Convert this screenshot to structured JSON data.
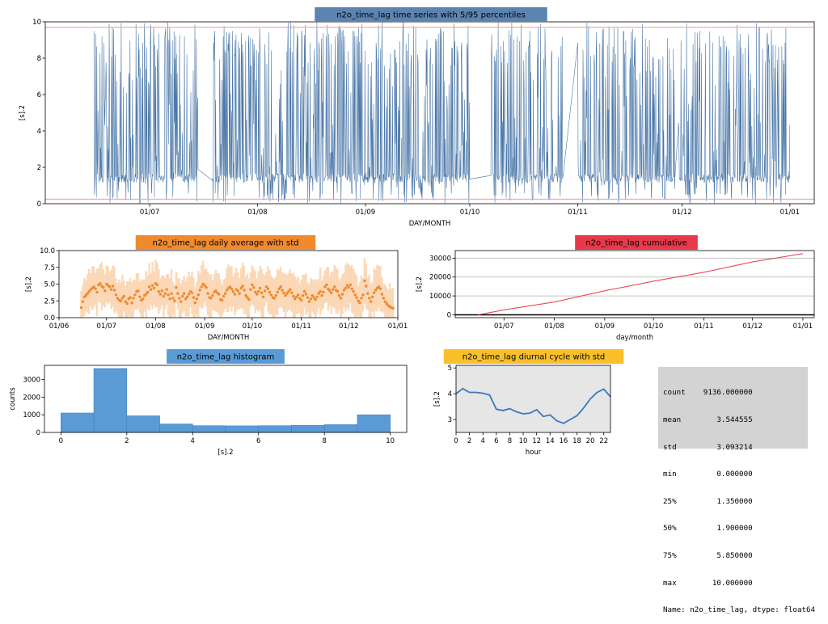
{
  "colors": {
    "ts_line": "#4a77a8",
    "percentile_line": "#ee9a9a",
    "ts_title_bg": "#5b84b1",
    "daily_title_bg": "#f08a2e",
    "daily_points": "#f08a2e",
    "daily_band": "#fbd3ad",
    "cum_title_bg": "#e8394a",
    "cum_line": "#e8394a",
    "hist_title_bg": "#5b9bd5",
    "hist_bar": "#5b9bd5",
    "diurnal_title_bg": "#f9c02b",
    "diurnal_line": "#3a7abf",
    "diurnal_bg": "#e6e6e6",
    "stats_bg": "#d3d3d3"
  },
  "chart_data": [
    {
      "id": "timeseries",
      "type": "line",
      "title": "n2o_time_lag time series with 5/95 percentiles",
      "xlabel": "DAY/MONTH",
      "ylabel": "[s].2",
      "ylim": [
        0,
        10
      ],
      "yticks": [
        "0",
        "2",
        "4",
        "6",
        "8",
        "10"
      ],
      "xticks": [
        "01/07",
        "01/08",
        "01/09",
        "01/10",
        "01/11",
        "01/12",
        "01/01"
      ],
      "xrange": [
        "2023-06-01",
        "2024-01-08"
      ],
      "data_start": "2023-06-15",
      "data_end": "2024-01-01",
      "percentile_5": 0.25,
      "percentile_95": 9.7,
      "gaps": [
        [
          "2023-07-15",
          "2023-07-19"
        ],
        [
          "2023-10-01",
          "2023-10-07"
        ],
        [
          "2023-10-28",
          "2023-11-01"
        ],
        [
          "2023-11-29",
          "2023-11-30"
        ]
      ],
      "typical_level": 1.4
    },
    {
      "id": "daily",
      "type": "scatter",
      "title": "n2o_time_lag daily average with std",
      "xlabel": "DAY/MONTH",
      "ylabel": "[s].2",
      "ylim": [
        0,
        10
      ],
      "yticks": [
        "0.0",
        "2.5",
        "5.0",
        "7.5",
        "10.0"
      ],
      "xticks": [
        "01/06",
        "01/07",
        "01/08",
        "01/09",
        "01/10",
        "01/11",
        "01/12",
        "01/01"
      ],
      "xrange": [
        "2023-06-01",
        "2024-01-01"
      ],
      "x_start": "2023-06-15",
      "values": [
        1.5,
        2.4,
        3.1,
        3.3,
        3.6,
        3.9,
        4.2,
        4.4,
        4.6,
        4.3,
        3.8,
        4.9,
        5.1,
        4.7,
        4.5,
        4.0,
        5.0,
        4.8,
        4.6,
        4.2,
        4.7,
        4.1,
        3.4,
        2.9,
        2.6,
        2.5,
        2.9,
        3.2,
        2.4,
        2.1,
        2.8,
        3.0,
        2.2,
        2.9,
        3.4,
        3.9,
        4.0,
        3.1,
        2.6,
        2.8,
        3.3,
        3.5,
        3.8,
        4.6,
        4.2,
        4.8,
        4.4,
        5.1,
        4.9,
        3.9,
        3.5,
        4.0,
        3.2,
        3.6,
        4.2,
        3.4,
        2.8,
        3.6,
        2.9,
        2.5,
        4.5,
        3.6,
        2.9,
        2.4,
        3.2,
        3.6,
        2.8,
        3.1,
        3.5,
        3.9,
        3.7,
        3.0,
        2.2,
        2.8,
        3.4,
        4.1,
        4.6,
        5.0,
        4.8,
        4.5,
        3.6,
        3.0,
        2.9,
        3.3,
        3.8,
        4.0,
        3.7,
        3.5,
        2.7,
        2.6,
        3.2,
        3.6,
        4.1,
        4.4,
        4.6,
        4.3,
        3.9,
        3.5,
        4.2,
        4.0,
        3.6,
        4.4,
        4.7,
        4.1,
        3.3,
        3.0,
        2.7,
        4.2,
        4.9,
        4.5,
        3.8,
        3.5,
        3.9,
        4.4,
        3.7,
        3.1,
        4.0,
        4.6,
        4.3,
        3.8,
        3.4,
        3.0,
        2.9,
        3.3,
        3.8,
        4.3,
        4.6,
        4.1,
        3.7,
        3.3,
        3.6,
        3.9,
        4.2,
        3.7,
        3.2,
        2.8,
        3.1,
        3.4,
        2.9,
        2.6,
        3.3,
        3.9,
        3.5,
        3.0,
        2.4,
        2.8,
        3.3,
        3.0,
        2.7,
        3.1,
        3.6,
        3.9,
        3.3,
        3.8,
        4.6,
        4.9,
        4.3,
        4.0,
        3.7,
        4.2,
        4.6,
        4.1,
        3.9,
        3.3,
        2.9,
        3.5,
        4.1,
        4.4,
        4.8,
        4.5,
        4.9,
        4.3,
        3.9,
        3.4,
        3.0,
        2.5,
        2.2,
        2.9,
        3.4,
        5.5,
        4.7,
        3.6,
        2.9,
        2.4,
        3.1,
        3.7,
        4.1,
        4.4,
        4.6,
        4.3,
        3.5,
        2.9,
        2.4,
        2.1,
        1.8,
        1.6,
        1.5,
        1.4
      ],
      "std": 2.9
    },
    {
      "id": "cumulative",
      "type": "line",
      "title": "n2o_time_lag cumulative",
      "xlabel": "day/month",
      "ylabel": "[s].2",
      "ylim": [
        -1500,
        34000
      ],
      "yticks": [
        "0",
        "10000",
        "20000",
        "30000"
      ],
      "xticks": [
        "01/07",
        "01/08",
        "01/09",
        "01/10",
        "01/11",
        "01/12",
        "01/01"
      ],
      "xrange": [
        "2023-06-01",
        "2024-01-08"
      ],
      "x": [
        "2023-06-15",
        "2023-07-01",
        "2023-08-01",
        "2023-09-01",
        "2023-10-01",
        "2023-11-01",
        "2023-12-01",
        "2024-01-01"
      ],
      "y": [
        0,
        2600,
        6800,
        12700,
        17800,
        22500,
        28000,
        32400
      ]
    },
    {
      "id": "histogram",
      "type": "bar",
      "title": "n2o_time_lag histogram",
      "xlabel": "[s].2",
      "ylabel": "counts",
      "ylim": [
        0,
        3800
      ],
      "yticks": [
        "0",
        "1000",
        "2000",
        "3000"
      ],
      "xticks": [
        "0",
        "2",
        "4",
        "6",
        "8",
        "10"
      ],
      "bin_edges": [
        0,
        1,
        2,
        3,
        4,
        5,
        6,
        7,
        8,
        9,
        10
      ],
      "values": [
        1100,
        3620,
        940,
        480,
        380,
        370,
        380,
        400,
        440,
        1000
      ]
    },
    {
      "id": "diurnal",
      "type": "line",
      "title": "n2o_time_lag diurnal cycle with std",
      "xlabel": "hour",
      "ylabel": "[s].2",
      "ylim": [
        2.5,
        5.1
      ],
      "yticks": [
        "3",
        "4",
        "5"
      ],
      "xticks": [
        "0",
        "2",
        "4",
        "6",
        "8",
        "10",
        "12",
        "14",
        "16",
        "18",
        "20",
        "22"
      ],
      "x": [
        0,
        1,
        2,
        3,
        4,
        5,
        6,
        7,
        8,
        9,
        10,
        11,
        12,
        13,
        14,
        15,
        16,
        17,
        18,
        19,
        20,
        21,
        22,
        23
      ],
      "y": [
        4.0,
        4.2,
        4.05,
        4.05,
        4.02,
        3.95,
        3.4,
        3.35,
        3.42,
        3.3,
        3.22,
        3.25,
        3.38,
        3.12,
        3.18,
        2.95,
        2.85,
        3.0,
        3.15,
        3.45,
        3.8,
        4.05,
        4.18,
        3.88
      ]
    }
  ],
  "stats": {
    "rows": [
      "count    9136.000000",
      "mean        3.544555",
      "std         3.093214",
      "min         0.000000",
      "25%         1.350000",
      "50%         1.900000",
      "75%         5.850000",
      "max        10.000000",
      "Name: n2o_time_lag, dtype: float64"
    ]
  }
}
